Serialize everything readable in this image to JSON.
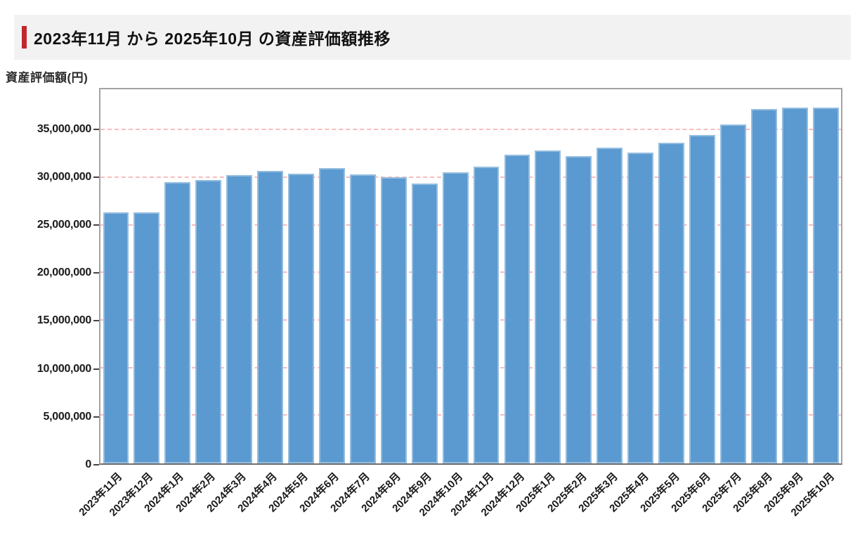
{
  "header": {
    "title": "2023年11月 から 2025年10月 の資産評価額推移"
  },
  "colors": {
    "accent_red": "#c1272d",
    "bar_blue": "#5b9ad0",
    "grid_pink": "#f8bcbc",
    "header_bg": "#f2f2f2"
  },
  "chart_data": {
    "type": "bar",
    "title": "2023年11月 から 2025年10月 の資産評価額推移",
    "xlabel": "",
    "ylabel": "資産評価額(円)",
    "legend": "none",
    "grid": "horizontal dashed",
    "ylim": [
      0,
      39300000
    ],
    "yticks": [
      0,
      5000000,
      10000000,
      15000000,
      20000000,
      25000000,
      30000000,
      35000000
    ],
    "ytick_labels": [
      "0",
      "5,000,000",
      "10,000,000",
      "15,000,000",
      "20,000,000",
      "25,000,000",
      "30,000,000",
      "35,000,000"
    ],
    "categories": [
      "2023年11月",
      "2023年12月",
      "2024年1月",
      "2024年2月",
      "2024年3月",
      "2024年4月",
      "2024年5月",
      "2024年6月",
      "2024年7月",
      "2024年8月",
      "2024年9月",
      "2024年10月",
      "2024年11月",
      "2024年12月",
      "2025年1月",
      "2025年2月",
      "2025年3月",
      "2025年4月",
      "2025年5月",
      "2025年6月",
      "2025年7月",
      "2025年8月",
      "2025年9月",
      "2025年10月"
    ],
    "values": [
      26350000,
      26350000,
      29550000,
      29800000,
      30300000,
      30700000,
      30450000,
      31000000,
      30350000,
      30100000,
      29400000,
      30550000,
      31150000,
      32450000,
      32900000,
      32300000,
      33150000,
      32650000,
      33700000,
      34500000,
      35600000,
      37250000,
      37350000,
      37400000
    ]
  }
}
